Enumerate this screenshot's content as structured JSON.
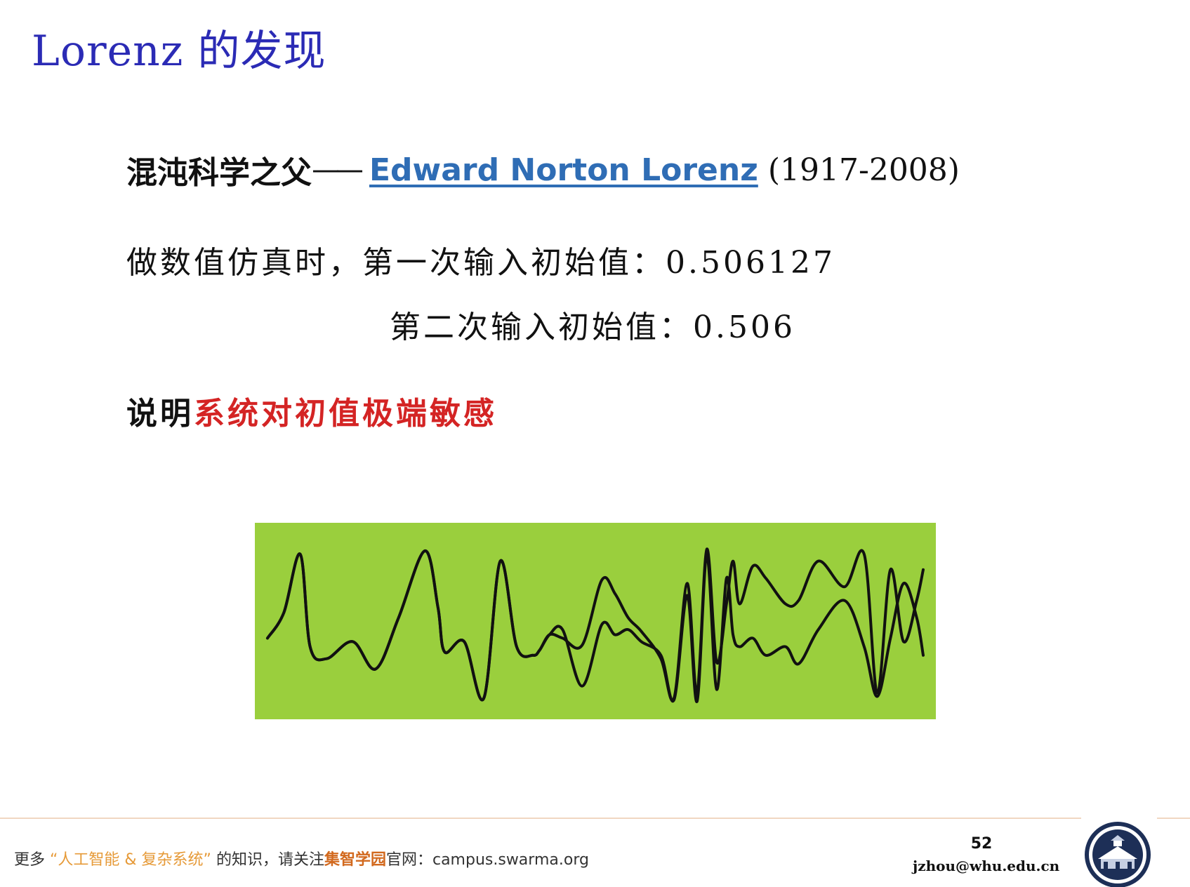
{
  "title": "Lorenz 的发现",
  "father": {
    "prefix": "混沌科学之父",
    "dash": "——",
    "name_link": "Edward Norton Lorenz",
    "years": "(1917-2008)"
  },
  "simulation": {
    "line1": "做数值仿真时，第一次输入初始值：0.506127",
    "line2": "第二次输入初始值：0.506"
  },
  "conclusion": {
    "lead": "说明",
    "highlight": "系统对初值极端敏感"
  },
  "chart_data": {
    "type": "line",
    "title": "",
    "xlabel": "",
    "ylabel": "",
    "grid": false,
    "legend": "none",
    "colors": {
      "background": "#9acf3d",
      "line": "#111111"
    },
    "x": [
      0,
      0.025,
      0.05,
      0.065,
      0.09,
      0.13,
      0.165,
      0.2,
      0.24,
      0.26,
      0.27,
      0.3,
      0.33,
      0.355,
      0.38,
      0.405,
      0.415,
      0.43,
      0.45,
      0.48,
      0.51,
      0.53,
      0.55,
      0.57,
      0.6,
      0.62,
      0.64,
      0.655,
      0.67,
      0.685,
      0.7,
      0.71,
      0.72,
      0.74,
      0.76,
      0.79,
      0.81,
      0.84,
      0.88,
      0.91,
      0.93,
      0.95,
      0.97,
      0.99,
      1.0
    ],
    "series": [
      {
        "values": [
          0.4,
          0.55,
          0.89,
          0.35,
          0.28,
          0.38,
          0.22,
          0.52,
          0.91,
          0.58,
          0.32,
          0.38,
          0.05,
          0.85,
          0.35,
          0.3,
          0.33,
          0.42,
          0.4,
          0.36,
          0.74,
          0.66,
          0.52,
          0.44,
          0.28,
          0.05,
          0.72,
          0.08,
          0.92,
          0.26,
          0.6,
          0.85,
          0.6,
          0.82,
          0.75,
          0.6,
          0.62,
          0.85,
          0.7,
          0.89,
          0.08,
          0.8,
          0.38,
          0.62,
          0.8
        ]
      },
      {
        "values": [
          0.4,
          0.55,
          0.89,
          0.35,
          0.28,
          0.38,
          0.22,
          0.52,
          0.91,
          0.58,
          0.32,
          0.38,
          0.05,
          0.85,
          0.35,
          0.3,
          0.33,
          0.42,
          0.45,
          0.12,
          0.48,
          0.42,
          0.45,
          0.38,
          0.3,
          0.04,
          0.65,
          0.03,
          0.88,
          0.1,
          0.75,
          0.42,
          0.35,
          0.4,
          0.3,
          0.35,
          0.25,
          0.45,
          0.62,
          0.35,
          0.06,
          0.4,
          0.72,
          0.52,
          0.3
        ]
      }
    ]
  },
  "footer": {
    "prefix": "更多",
    "quoted_topic": "“人工智能 & 复杂系统”",
    "middle": "的知识，请关注",
    "brand": "集智学园",
    "suffix": "官网：campus.swarma.org",
    "page_number": "52",
    "email": "jzhou@whu.edu.cn"
  }
}
